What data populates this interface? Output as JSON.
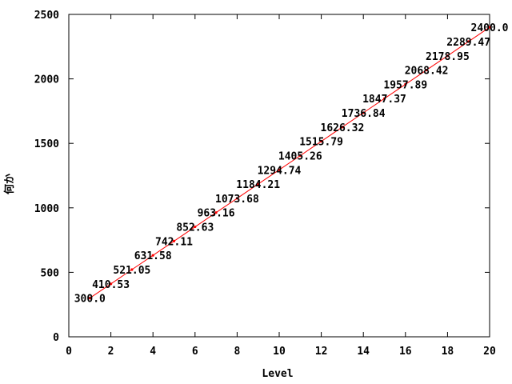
{
  "chart_data": {
    "type": "line",
    "title": "",
    "xlabel": "Level",
    "ylabel": "何か",
    "xlim": [
      0,
      20
    ],
    "ylim": [
      0,
      2500
    ],
    "xticks": [
      0,
      2,
      4,
      6,
      8,
      10,
      12,
      14,
      16,
      18,
      20
    ],
    "yticks": [
      0,
      500,
      1000,
      1500,
      2000,
      2500
    ],
    "grid": false,
    "line_color": "#ff0000",
    "point_color": "#ff0000",
    "series": [
      {
        "x": [
          1,
          2,
          3,
          4,
          5,
          6,
          7,
          8,
          9,
          10,
          11,
          12,
          13,
          14,
          15,
          16,
          17,
          18,
          19,
          20
        ],
        "values": [
          300.0,
          410.53,
          521.05,
          631.58,
          742.11,
          852.63,
          963.16,
          1073.68,
          1184.21,
          1294.74,
          1405.26,
          1515.79,
          1626.32,
          1736.84,
          1847.37,
          1957.89,
          2068.42,
          2178.95,
          2289.47,
          2400.0
        ],
        "labels": [
          "300.0",
          "410.53",
          "521.05",
          "631.58",
          "742.11",
          "852.63",
          "963.16",
          "1073.68",
          "1184.21",
          "1294.74",
          "1405.26",
          "1515.79",
          "1626.32",
          "1736.84",
          "1847.37",
          "1957.89",
          "2068.42",
          "2178.95",
          "2289.47",
          "2400.0"
        ]
      }
    ]
  }
}
